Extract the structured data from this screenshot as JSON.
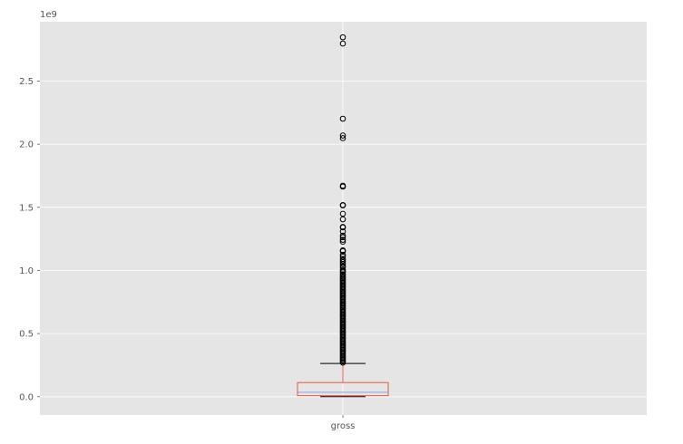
{
  "chart_data": {
    "type": "box",
    "categories": [
      "gross"
    ],
    "y_scale_label": "1e9",
    "ylim": [
      -0.145,
      2.97
    ],
    "yticks": [
      0.0,
      0.5,
      1.0,
      1.5,
      2.0,
      2.5
    ],
    "ytick_labels": [
      "0.0",
      "0.5",
      "1.0",
      "1.5",
      "2.0",
      "2.5"
    ],
    "grid": true,
    "colors": {
      "plot_background": "#e5e5e5",
      "grid": "#ffffff",
      "box": "#e24a33",
      "median": "#988ed5",
      "whisker": "#000000",
      "flier": "#000000"
    },
    "box": {
      "whisker_low": 0.0,
      "q1": 0.008,
      "median": 0.035,
      "q3": 0.112,
      "whisker_high": 0.263
    },
    "outliers": [
      2.847,
      2.797,
      2.202,
      2.069,
      2.048,
      1.671,
      1.664,
      1.518,
      1.515,
      1.449,
      1.405,
      1.345,
      1.341,
      1.309,
      1.276,
      1.263,
      1.243,
      1.228,
      1.159,
      1.153,
      1.124,
      1.109,
      1.091,
      1.079,
      1.066,
      1.051,
      1.034,
      1.025,
      1.005,
      0.996,
      0.985,
      0.97,
      0.96,
      0.95,
      0.94,
      0.93,
      0.92,
      0.91,
      0.9,
      0.89,
      0.88,
      0.87,
      0.86,
      0.85,
      0.84,
      0.83,
      0.82,
      0.81,
      0.8,
      0.79,
      0.78,
      0.77,
      0.76,
      0.75,
      0.74,
      0.73,
      0.72,
      0.71,
      0.7,
      0.69,
      0.68,
      0.67,
      0.66,
      0.65,
      0.64,
      0.63,
      0.62,
      0.61,
      0.6,
      0.59,
      0.58,
      0.57,
      0.56,
      0.55,
      0.54,
      0.53,
      0.52,
      0.51,
      0.5,
      0.49,
      0.48,
      0.47,
      0.46,
      0.45,
      0.44,
      0.43,
      0.42,
      0.41,
      0.4,
      0.39,
      0.38,
      0.37,
      0.36,
      0.35,
      0.34,
      0.33,
      0.32,
      0.31,
      0.3,
      0.29,
      0.28,
      0.27
    ]
  }
}
